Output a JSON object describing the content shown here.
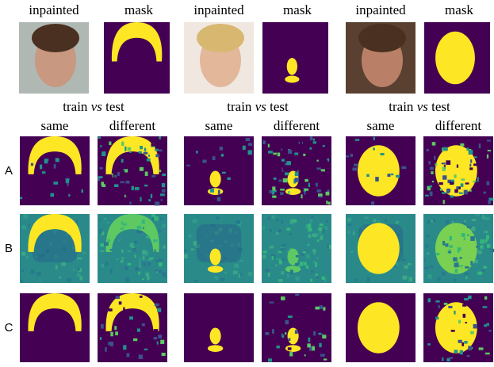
{
  "groups": [
    {
      "top": [
        "inpainted",
        "mask"
      ],
      "compare": {
        "pre": "train",
        "em": "vs",
        "post": "test"
      },
      "columns": [
        "same",
        "different"
      ]
    },
    {
      "top": [
        "inpainted",
        "mask"
      ],
      "compare": {
        "pre": "train",
        "em": "vs",
        "post": "test"
      },
      "columns": [
        "same",
        "different"
      ]
    },
    {
      "top": [
        "inpainted",
        "mask"
      ],
      "compare": {
        "pre": "train",
        "em": "vs",
        "post": "test"
      },
      "columns": [
        "same",
        "different"
      ]
    }
  ],
  "rows": [
    "A",
    "B",
    "C"
  ]
}
